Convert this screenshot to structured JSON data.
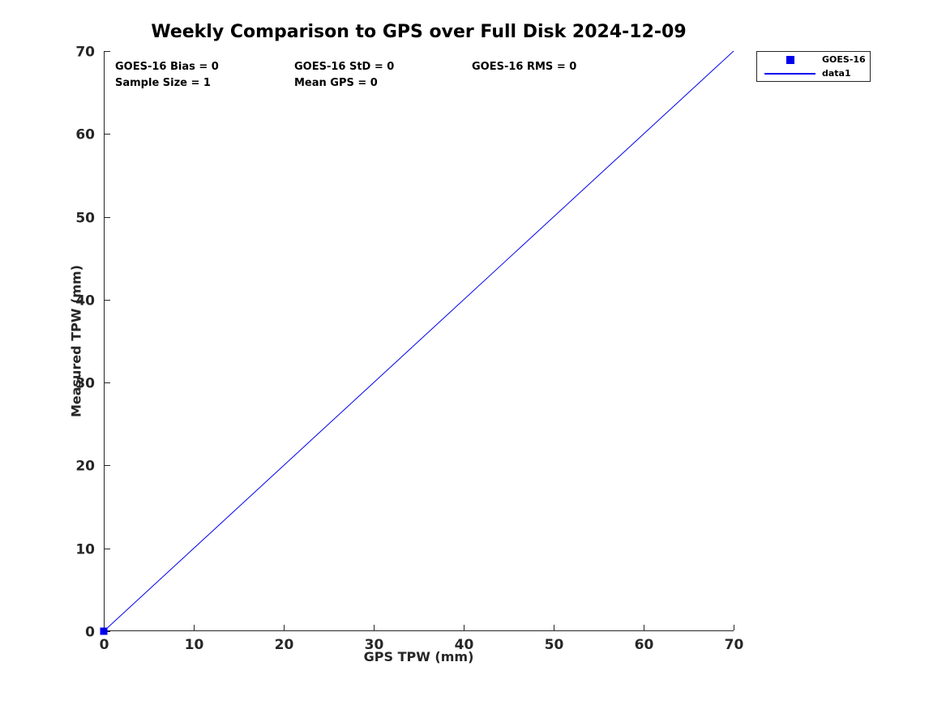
{
  "chart_data": {
    "type": "scatter",
    "title": "Weekly Comparison to GPS over Full Disk 2024-12-09",
    "xlabel": "GPS TPW (mm)",
    "ylabel": "Measured TPW (mm)",
    "xlim": [
      0,
      70
    ],
    "ylim": [
      0,
      70
    ],
    "xticks": [
      0,
      10,
      20,
      30,
      40,
      50,
      60,
      70
    ],
    "yticks": [
      0,
      10,
      20,
      30,
      40,
      50,
      60,
      70
    ],
    "grid": false,
    "axis_color": "#262626",
    "accent_color": "#0000EE",
    "series": [
      {
        "name": "GOES-16",
        "type": "scatter",
        "marker": "square",
        "marker_size": 9,
        "color": "#0000EE",
        "points": [
          [
            0,
            0
          ]
        ]
      },
      {
        "name": "data1",
        "type": "line",
        "color": "#0000EE",
        "line_width": 1,
        "points": [
          [
            0,
            0
          ],
          [
            70,
            70
          ]
        ]
      }
    ],
    "legend": {
      "position": "outside-top-right",
      "entries": [
        {
          "label": "GOES-16",
          "glyph": "square-marker",
          "color": "#0000EE"
        },
        {
          "label": "data1",
          "glyph": "line",
          "color": "#0000EE"
        }
      ]
    },
    "annotations": [
      {
        "text": "GOES-16 Bias = 0"
      },
      {
        "text": "GOES-16 StD = 0"
      },
      {
        "text": "GOES-16 RMS = 0"
      },
      {
        "text": "Sample Size = 1"
      },
      {
        "text": "Mean GPS = 0"
      }
    ]
  }
}
